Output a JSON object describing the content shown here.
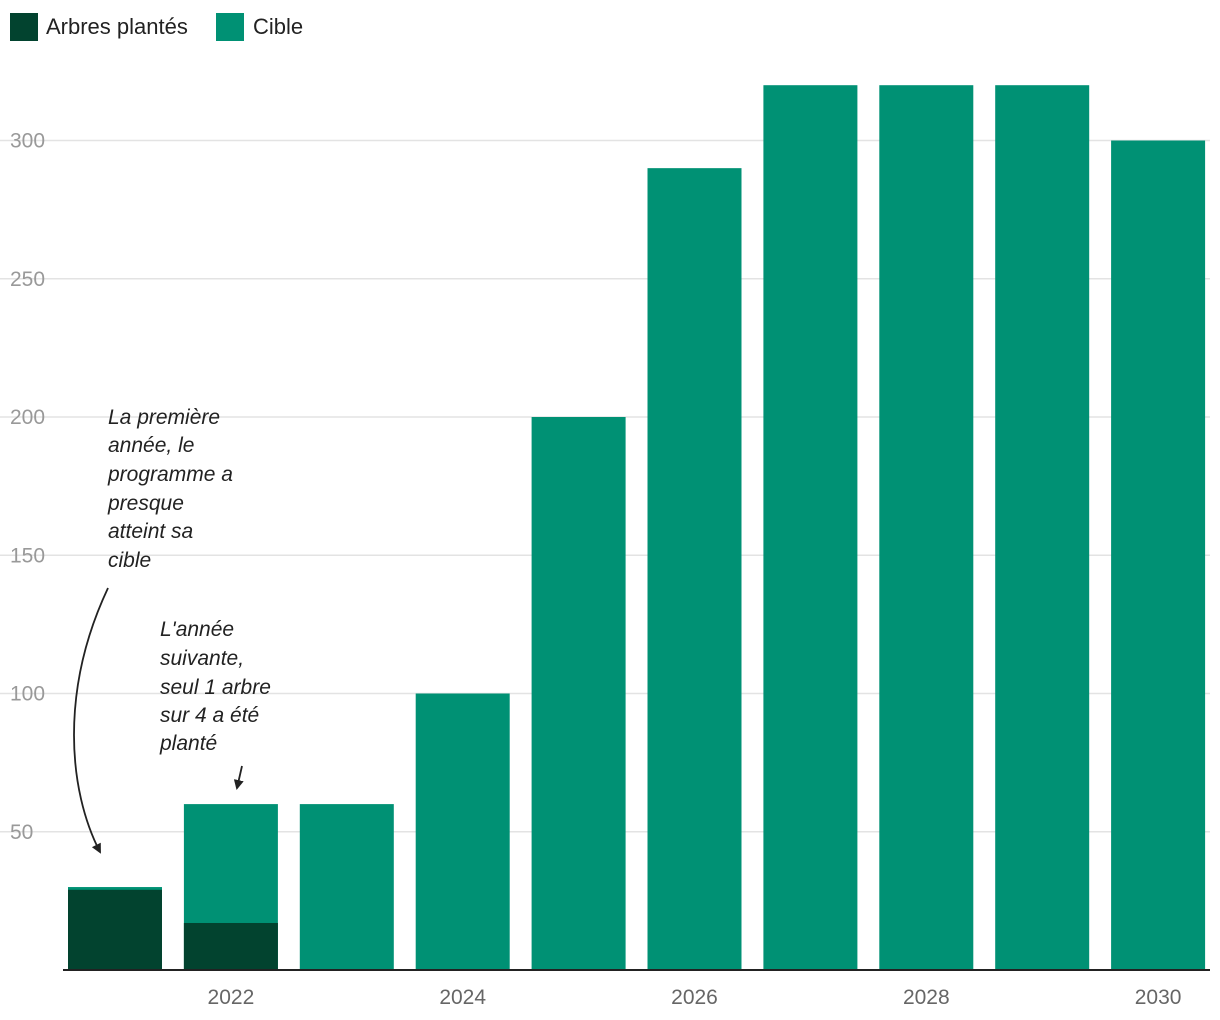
{
  "chart_data": {
    "type": "bar",
    "stacked": "overlay",
    "categories": [
      "2021",
      "2022",
      "2023",
      "2024",
      "2025",
      "2026",
      "2027",
      "2028",
      "2029",
      "2030"
    ],
    "x_tick_labels": [
      "2022",
      "2024",
      "2026",
      "2028",
      "2030"
    ],
    "series": [
      {
        "name": "Arbres plantés",
        "color": "#02432f",
        "values": [
          29,
          17,
          null,
          null,
          null,
          null,
          null,
          null,
          null,
          null
        ]
      },
      {
        "name": "Cible",
        "color": "#009174",
        "values": [
          30,
          60,
          60,
          100,
          200,
          290,
          320,
          320,
          320,
          300
        ]
      }
    ],
    "ylim": [
      0,
      320
    ],
    "y_ticks": [
      50,
      100,
      150,
      200,
      250,
      300
    ],
    "grid": true,
    "legend": "top-left",
    "title": "",
    "xlabel": "",
    "ylabel": "",
    "annotations": [
      {
        "target": "2021",
        "lines": [
          "La première",
          "année, le",
          "programme a",
          "presque",
          "atteint sa",
          "cible"
        ]
      },
      {
        "target": "2022",
        "lines": [
          "L'année",
          "suivante,",
          "seul 1 arbre",
          "sur 4 a été",
          "planté"
        ]
      }
    ]
  }
}
